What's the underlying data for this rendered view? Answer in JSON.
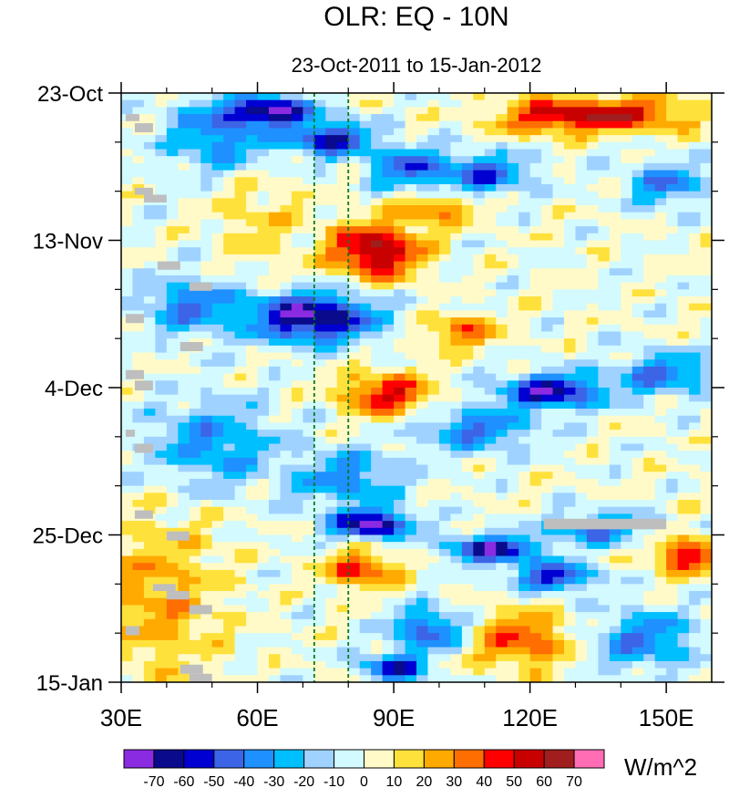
{
  "chart_data": {
    "type": "heatmap",
    "title": "OLR: EQ - 10N",
    "subtitle": "23-Oct-2011 to 15-Jan-2012",
    "xlabel": "",
    "ylabel": "",
    "x_range": [
      30,
      160
    ],
    "x_ticks": [
      {
        "value": 30,
        "label": "30E"
      },
      {
        "value": 60,
        "label": "60E"
      },
      {
        "value": 90,
        "label": "90E"
      },
      {
        "value": 120,
        "label": "120E"
      },
      {
        "value": 150,
        "label": "150E"
      }
    ],
    "y_range_days": [
      0,
      84
    ],
    "y_ticks": [
      {
        "day": 0,
        "label": "23-Oct"
      },
      {
        "day": 21,
        "label": "13-Nov"
      },
      {
        "day": 42,
        "label": "4-Dec"
      },
      {
        "day": 63,
        "label": "25-Dec"
      },
      {
        "day": 84,
        "label": "15-Jan"
      }
    ],
    "reference_lines_lon": [
      72.5,
      80
    ],
    "units": "W/m^2",
    "levels": [
      -70,
      -60,
      -50,
      -40,
      -30,
      -20,
      -10,
      0,
      10,
      20,
      30,
      40,
      50,
      60,
      70
    ],
    "colors": [
      "#8a2be2",
      "#0a0a8c",
      "#0000d2",
      "#3c64e6",
      "#1e90ff",
      "#00bfff",
      "#a0d2ff",
      "#d2faff",
      "#fffac8",
      "#ffe13c",
      "#ffaa00",
      "#ff6e00",
      "#ff0000",
      "#c80000",
      "#a01e1e",
      "#ff6eb4"
    ],
    "missing_color": "#bebebe",
    "features": [
      {
        "lon": 63,
        "day": 2.5,
        "amp": -70,
        "rlon": 9,
        "rday": 1.8
      },
      {
        "lon": 76,
        "day": 6.5,
        "amp": -60,
        "rlon": 9,
        "rday": 2.5
      },
      {
        "lon": 52,
        "day": 6,
        "amp": -40,
        "rlon": 12,
        "rday": 5
      },
      {
        "lon": 140,
        "day": 3,
        "amp": 50,
        "rlon": 16,
        "rday": 2.5
      },
      {
        "lon": 123,
        "day": 3.5,
        "amp": 35,
        "rlon": 12,
        "rday": 2.5
      },
      {
        "lon": 93,
        "day": 10.5,
        "amp": -45,
        "rlon": 8,
        "rday": 3
      },
      {
        "lon": 110,
        "day": 11.5,
        "amp": -45,
        "rlon": 10,
        "rday": 3
      },
      {
        "lon": 86,
        "day": 22.5,
        "amp": 65,
        "rlon": 10,
        "rday": 4
      },
      {
        "lon": 100,
        "day": 16.5,
        "amp": 35,
        "rlon": 8,
        "rday": 2
      },
      {
        "lon": 150,
        "day": 13,
        "amp": -40,
        "rlon": 8,
        "rday": 3
      },
      {
        "lon": 72,
        "day": 32,
        "amp": -75,
        "rlon": 14,
        "rday": 3.5
      },
      {
        "lon": 45,
        "day": 30,
        "amp": -40,
        "rlon": 10,
        "rday": 4
      },
      {
        "lon": 88,
        "day": 43,
        "amp": 50,
        "rlon": 10,
        "rday": 3
      },
      {
        "lon": 105,
        "day": 34,
        "amp": 35,
        "rlon": 8,
        "rday": 2.5
      },
      {
        "lon": 125,
        "day": 42.5,
        "amp": -65,
        "rlon": 12,
        "rday": 2.5
      },
      {
        "lon": 150,
        "day": 40,
        "amp": -40,
        "rlon": 10,
        "rday": 3
      },
      {
        "lon": 108,
        "day": 48,
        "amp": -40,
        "rlon": 12,
        "rday": 3
      },
      {
        "lon": 50,
        "day": 50,
        "amp": -35,
        "rlon": 14,
        "rday": 6
      },
      {
        "lon": 80,
        "day": 55,
        "amp": -35,
        "rlon": 12,
        "rday": 4
      },
      {
        "lon": 85,
        "day": 61.5,
        "amp": -70,
        "rlon": 9,
        "rday": 2
      },
      {
        "lon": 112,
        "day": 65,
        "amp": -65,
        "rlon": 10,
        "rday": 2
      },
      {
        "lon": 135,
        "day": 62,
        "amp": -40,
        "rlon": 10,
        "rday": 2.5
      },
      {
        "lon": 155,
        "day": 66,
        "amp": 50,
        "rlon": 8,
        "rday": 2.5
      },
      {
        "lon": 83,
        "day": 68,
        "amp": 45,
        "rlon": 8,
        "rday": 2.5
      },
      {
        "lon": 125,
        "day": 69,
        "amp": -55,
        "rlon": 9,
        "rday": 2
      },
      {
        "lon": 98,
        "day": 76.5,
        "amp": -50,
        "rlon": 8,
        "rday": 3
      },
      {
        "lon": 90,
        "day": 82,
        "amp": -55,
        "rlon": 7,
        "rday": 2
      },
      {
        "lon": 118,
        "day": 78,
        "amp": 40,
        "rlon": 12,
        "rday": 4
      },
      {
        "lon": 145,
        "day": 78,
        "amp": -40,
        "rlon": 12,
        "rday": 4
      },
      {
        "lon": 38,
        "day": 72,
        "amp": 25,
        "rlon": 14,
        "rday": 12
      },
      {
        "lon": 60,
        "day": 18,
        "amp": 15,
        "rlon": 10,
        "rday": 8
      }
    ],
    "missing_segments": [
      {
        "lon0": 31,
        "lon1": 34,
        "day0": 3.0,
        "day1": 4.0
      },
      {
        "lon0": 33,
        "lon1": 37,
        "day0": 4.3,
        "day1": 5.6
      },
      {
        "lon0": 33,
        "lon1": 37,
        "day0": 13.5,
        "day1": 14.5
      },
      {
        "lon0": 35,
        "lon1": 40,
        "day0": 14.5,
        "day1": 15.6
      },
      {
        "lon0": 38,
        "lon1": 43,
        "day0": 24.0,
        "day1": 25.2
      },
      {
        "lon0": 45,
        "lon1": 50,
        "day0": 27.0,
        "day1": 28.2
      },
      {
        "lon0": 31,
        "lon1": 35,
        "day0": 31.5,
        "day1": 32.8
      },
      {
        "lon0": 43,
        "lon1": 48,
        "day0": 35.5,
        "day1": 36.8
      },
      {
        "lon0": 31,
        "lon1": 35,
        "day0": 39.5,
        "day1": 40.8
      },
      {
        "lon0": 33,
        "lon1": 37,
        "day0": 41.0,
        "day1": 42.4
      },
      {
        "lon0": 31,
        "lon1": 33,
        "day0": 48.0,
        "day1": 49.0
      },
      {
        "lon0": 33,
        "lon1": 37,
        "day0": 50.0,
        "day1": 51.3
      },
      {
        "lon0": 33,
        "lon1": 37,
        "day0": 59.5,
        "day1": 60.7
      },
      {
        "lon0": 40,
        "lon1": 45,
        "day0": 62.5,
        "day1": 63.8
      },
      {
        "lon0": 37,
        "lon1": 42,
        "day0": 70.0,
        "day1": 71.0
      },
      {
        "lon0": 40,
        "lon1": 45,
        "day0": 71.0,
        "day1": 72.2
      },
      {
        "lon0": 45,
        "lon1": 50,
        "day0": 73.0,
        "day1": 74.3
      },
      {
        "lon0": 31,
        "lon1": 34,
        "day0": 76.0,
        "day1": 77.3
      },
      {
        "lon0": 43,
        "lon1": 48,
        "day0": 81.5,
        "day1": 82.8
      },
      {
        "lon0": 45,
        "lon1": 50,
        "day0": 82.8,
        "day1": 84.0
      },
      {
        "lon0": 123,
        "lon1": 150,
        "day0": 60.7,
        "day1": 62.2
      }
    ]
  }
}
